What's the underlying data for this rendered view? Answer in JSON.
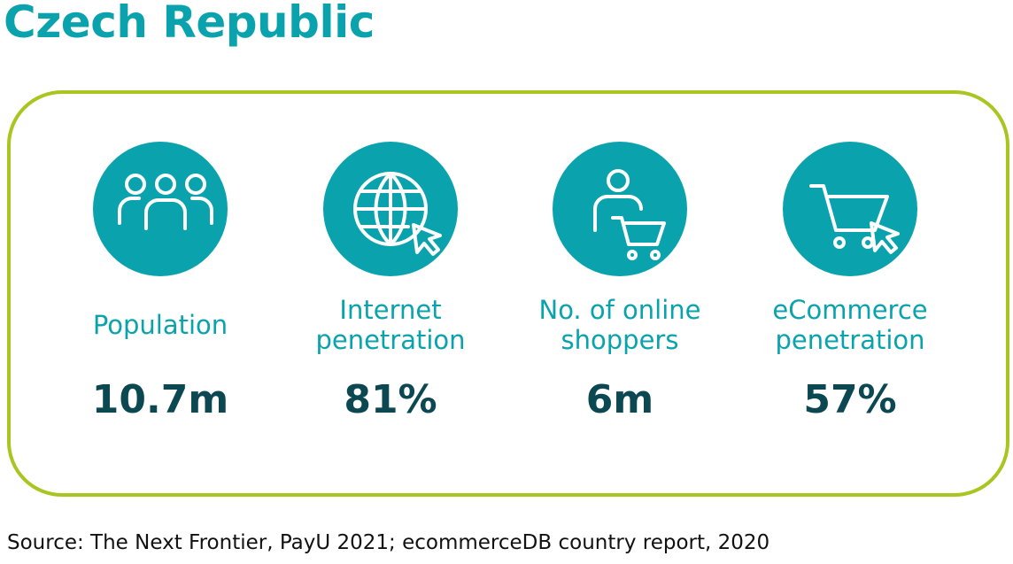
{
  "header": {
    "title": "Czech Republic"
  },
  "stats": [
    {
      "label": [
        "Population"
      ],
      "value": "10.7m"
    },
    {
      "label": [
        "Internet",
        "penetration"
      ],
      "value": "81%"
    },
    {
      "label": [
        "No. of online",
        "shoppers"
      ],
      "value": "6m"
    },
    {
      "label": [
        "eCommerce",
        "penetration"
      ],
      "value": "57%"
    }
  ],
  "footer": {
    "source": "Source: The Next Frontier, PayU 2021; ecommerceDB country report, 2020"
  }
}
